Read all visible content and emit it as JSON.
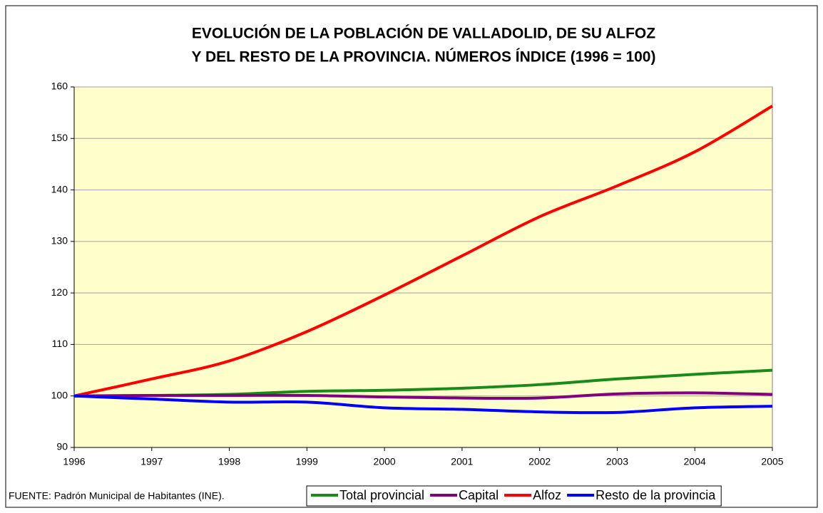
{
  "chart_data": {
    "type": "line",
    "title": [
      "EVOLUCIÓN DE LA POBLACIÓN DE VALLADOLID, DE SU ALFOZ",
      "Y DEL RESTO DE LA PROVINCIA. NÚMEROS ÍNDICE (1996 = 100)"
    ],
    "source": "FUENTE: Padrón Municipal de Habitantes (INE).",
    "x": [
      1996,
      1997,
      1998,
      1999,
      2000,
      2001,
      2002,
      2003,
      2004,
      2005
    ],
    "series": [
      {
        "name": "Total provincial",
        "color": "#1a8a1a",
        "values": [
          100,
          100.1,
          100.3,
          100.9,
          101.1,
          101.5,
          102.2,
          103.3,
          104.2,
          105.0
        ]
      },
      {
        "name": "Capital",
        "color": "#800080",
        "values": [
          100,
          100.1,
          100.1,
          100.1,
          99.8,
          99.6,
          99.6,
          100.4,
          100.6,
          100.3
        ]
      },
      {
        "name": "Alfoz",
        "color": "#ff0000",
        "values": [
          100,
          103.3,
          106.8,
          112.5,
          119.6,
          127.2,
          134.8,
          140.8,
          147.4,
          156.3
        ]
      },
      {
        "name": "Resto de la provincia",
        "color": "#0000ff",
        "values": [
          100,
          99.4,
          98.8,
          98.8,
          97.7,
          97.4,
          96.9,
          96.8,
          97.7,
          98.0
        ]
      }
    ],
    "xlim": [
      1996,
      2005
    ],
    "xticks": [
      1996,
      1997,
      1998,
      1999,
      2000,
      2001,
      2002,
      2003,
      2004,
      2005
    ],
    "ylim": [
      90,
      160
    ],
    "yticks": [
      90,
      100,
      110,
      120,
      130,
      140,
      150,
      160
    ],
    "grid": true,
    "plot_background": "#ffffcc",
    "legend": "bottom"
  }
}
